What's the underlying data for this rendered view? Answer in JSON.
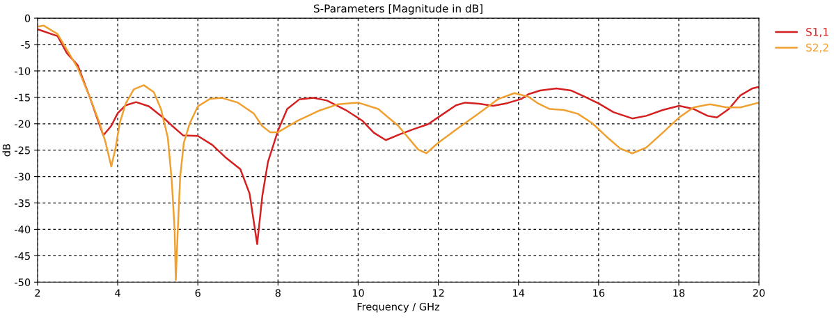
{
  "chart_data": {
    "type": "line",
    "title": "S-Parameters [Magnitude in dB]",
    "xlabel": "Frequency / GHz",
    "ylabel": "dB",
    "xlim": [
      2,
      20
    ],
    "xticks": [
      2,
      4,
      6,
      8,
      10,
      12,
      14,
      16,
      18,
      20
    ],
    "ylim": [
      -50,
      0
    ],
    "yticks": [
      -50,
      -45,
      -40,
      -35,
      -30,
      -25,
      -20,
      -15,
      -10,
      -5,
      0
    ],
    "grid": true,
    "legend": "top right",
    "line_style": "solid",
    "marker": "none",
    "series": [
      {
        "name": "S1,1",
        "color": "#d42020",
        "x": [
          2.0,
          2.5,
          2.73,
          3.0,
          3.31,
          3.49,
          3.64,
          3.84,
          4.0,
          4.2,
          4.46,
          4.78,
          5.13,
          5.36,
          5.63,
          6.0,
          6.36,
          6.71,
          7.06,
          7.29,
          7.48,
          7.61,
          7.75,
          8.0,
          8.23,
          8.53,
          8.88,
          9.22,
          9.69,
          10.1,
          10.39,
          10.69,
          11.04,
          11.39,
          11.74,
          12.09,
          12.44,
          12.67,
          13.02,
          13.37,
          13.72,
          14.07,
          14.25,
          14.54,
          14.95,
          15.31,
          15.66,
          16.01,
          16.37,
          16.84,
          17.19,
          17.6,
          18.01,
          18.37,
          18.72,
          18.95,
          19.25,
          19.54,
          19.84,
          20.0
        ],
        "values": [
          -2.1,
          -3.4,
          -6.6,
          -8.9,
          -15.1,
          -19.0,
          -22.2,
          -20.4,
          -18.0,
          -16.5,
          -15.9,
          -16.7,
          -18.8,
          -20.4,
          -22.2,
          -22.3,
          -24.0,
          -26.5,
          -28.6,
          -33.2,
          -42.8,
          -33.6,
          -27.2,
          -21.3,
          -17.2,
          -15.4,
          -15.1,
          -15.6,
          -17.4,
          -19.4,
          -21.7,
          -23.1,
          -22.0,
          -21.0,
          -20.1,
          -18.3,
          -16.5,
          -16.0,
          -16.2,
          -16.6,
          -16.1,
          -15.3,
          -14.4,
          -13.7,
          -13.3,
          -13.7,
          -14.9,
          -16.2,
          -17.8,
          -19.0,
          -18.5,
          -17.4,
          -16.6,
          -17.2,
          -18.5,
          -18.8,
          -17.2,
          -14.6,
          -13.3,
          -13.0
        ]
      },
      {
        "name": "S2,2",
        "color": "#f0a030",
        "x": [
          2.0,
          2.15,
          2.5,
          2.75,
          3.0,
          3.3,
          3.55,
          3.7,
          3.84,
          3.95,
          4.05,
          4.2,
          4.4,
          4.65,
          4.9,
          5.08,
          5.25,
          5.35,
          5.42,
          5.45,
          5.5,
          5.56,
          5.65,
          5.8,
          6.0,
          6.3,
          6.6,
          7.0,
          7.4,
          7.6,
          7.8,
          8.0,
          8.5,
          9.0,
          9.5,
          10.0,
          10.5,
          11.0,
          11.5,
          11.7,
          12.0,
          12.5,
          13.0,
          13.5,
          13.9,
          14.25,
          14.5,
          14.78,
          15.13,
          15.48,
          15.84,
          16.19,
          16.54,
          16.84,
          17.19,
          17.6,
          18.01,
          18.37,
          18.78,
          19.19,
          19.54,
          20.0
        ],
        "values": [
          -1.6,
          -1.4,
          -3.0,
          -6.2,
          -9.4,
          -14.9,
          -19.9,
          -23.6,
          -28.1,
          -24.5,
          -19.9,
          -16.2,
          -13.5,
          -12.7,
          -14.0,
          -17.2,
          -22.6,
          -30.9,
          -40.0,
          -49.6,
          -40.0,
          -30.0,
          -23.6,
          -19.9,
          -16.7,
          -15.3,
          -15.1,
          -16.0,
          -18.1,
          -20.4,
          -21.6,
          -21.6,
          -19.4,
          -17.6,
          -16.3,
          -16.0,
          -17.2,
          -20.4,
          -24.9,
          -25.6,
          -23.6,
          -20.8,
          -18.1,
          -15.3,
          -14.2,
          -14.9,
          -16.2,
          -17.2,
          -17.4,
          -18.1,
          -19.9,
          -22.4,
          -24.7,
          -25.6,
          -24.5,
          -21.7,
          -18.8,
          -16.9,
          -16.3,
          -16.9,
          -16.9,
          -16.0
        ]
      }
    ]
  }
}
